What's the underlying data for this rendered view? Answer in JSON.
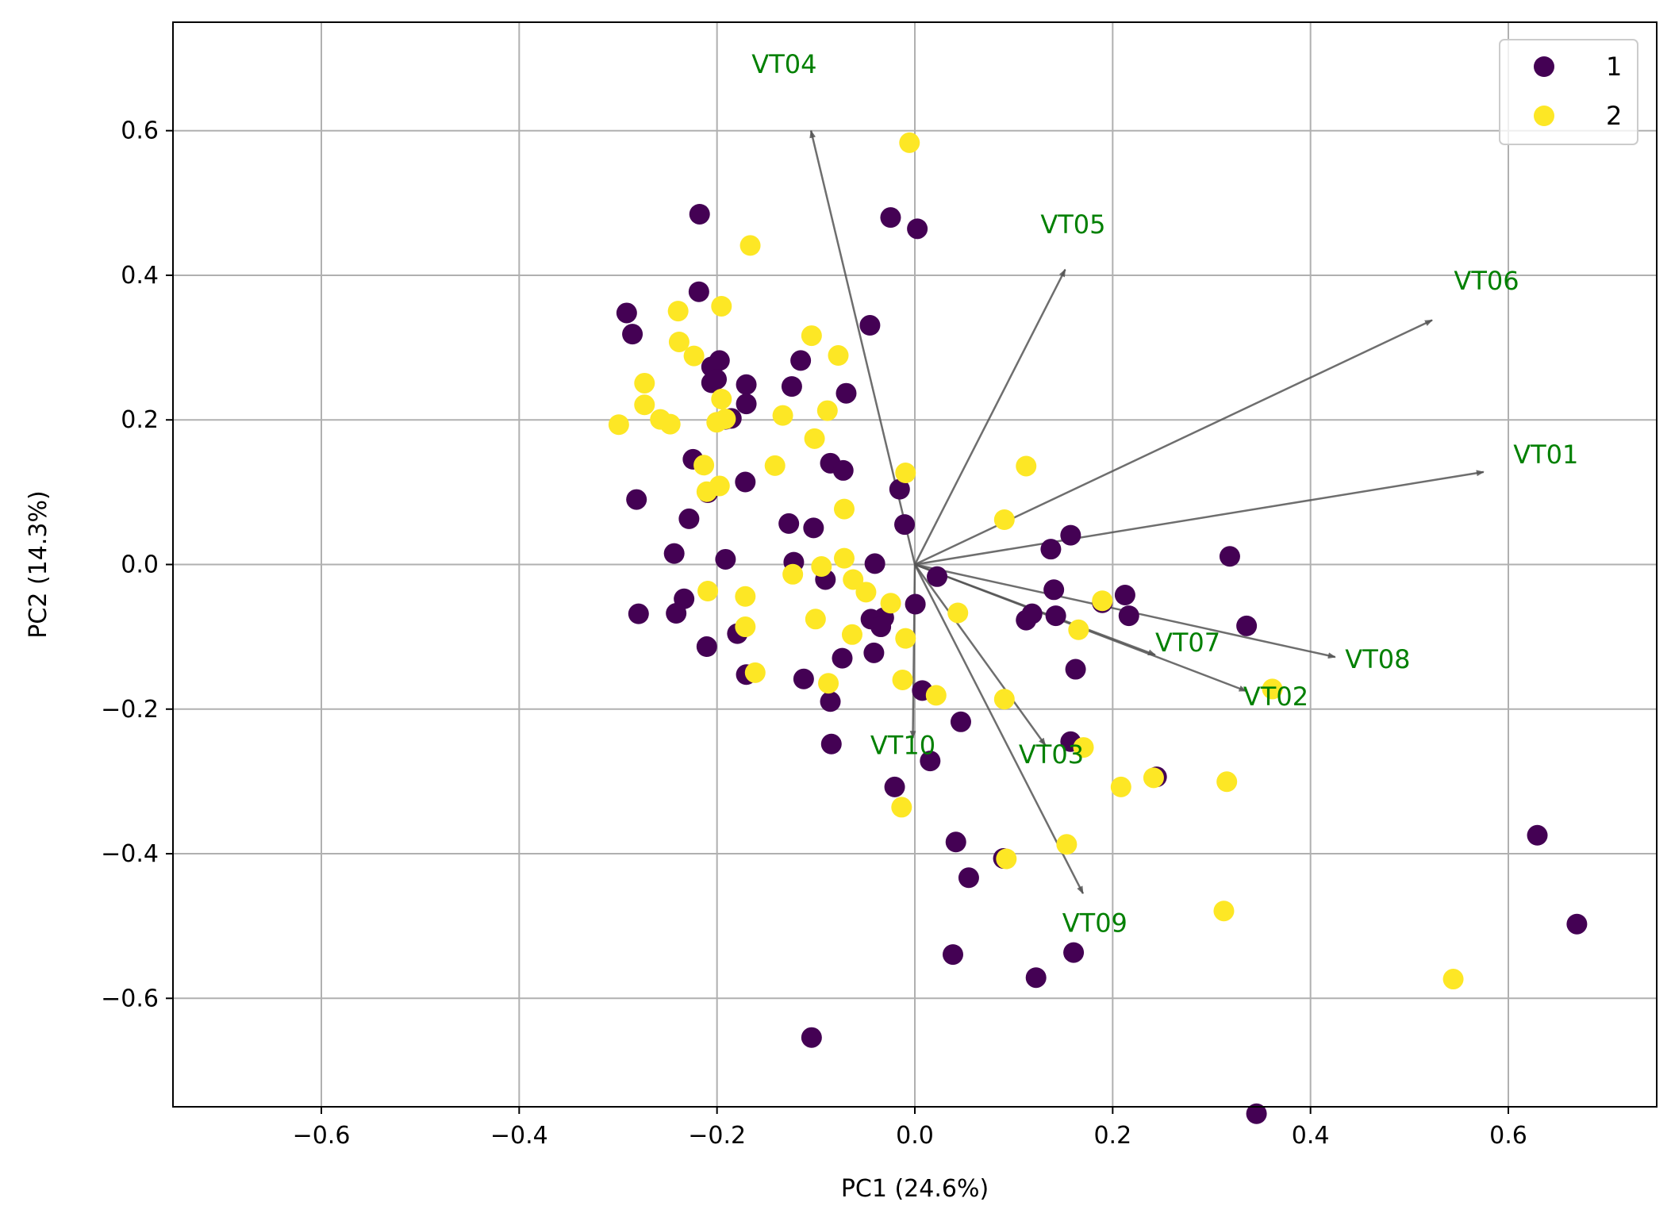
{
  "chart_data": {
    "type": "scatter",
    "title": "",
    "xlabel": "PC1 (24.6%)",
    "ylabel": "PC2 (14.3%)",
    "xlim": [
      -0.75,
      0.75
    ],
    "ylim": [
      -0.75,
      0.75
    ],
    "xticks": [
      -0.6,
      -0.4,
      -0.2,
      0.0,
      0.2,
      0.4,
      0.6
    ],
    "yticks": [
      -0.6,
      -0.4,
      -0.2,
      0.0,
      0.2,
      0.4,
      0.6
    ],
    "xtick_labels": [
      "−0.6",
      "−0.4",
      "−0.2",
      "0.0",
      "0.2",
      "0.4",
      "0.6"
    ],
    "ytick_labels": [
      "−0.6",
      "−0.4",
      "−0.2",
      "0.0",
      "0.2",
      "0.4",
      "0.6"
    ],
    "grid": true,
    "legend_position": "top-right",
    "series": [
      {
        "name": "1",
        "color": "#440154",
        "points": [
          [
            -0.2176,
            0.4845
          ],
          [
            -0.0245,
            0.4799
          ],
          [
            0.0025,
            0.4643
          ],
          [
            -0.2183,
            0.3772
          ],
          [
            -0.2913,
            0.3479
          ],
          [
            -0.2855,
            0.3186
          ],
          [
            -0.0454,
            0.3308
          ],
          [
            -0.1975,
            0.2821
          ],
          [
            -0.2055,
            0.2734
          ],
          [
            -0.1154,
            0.2821
          ],
          [
            -0.2055,
            0.2514
          ],
          [
            -0.1704,
            0.2488
          ],
          [
            -0.1244,
            0.2462
          ],
          [
            -0.0694,
            0.2368
          ],
          [
            -0.2005,
            0.2561
          ],
          [
            -0.1704,
            0.2221
          ],
          [
            -0.1855,
            0.2021
          ],
          [
            -0.1914,
            0.2008
          ],
          [
            -0.2243,
            0.1455
          ],
          [
            -0.0854,
            0.1401
          ],
          [
            -0.0724,
            0.1301
          ],
          [
            -0.1714,
            0.1141
          ],
          [
            -0.2093,
            0.0993
          ],
          [
            -0.2814,
            0.0899
          ],
          [
            -0.0154,
            0.1041
          ],
          [
            -0.2283,
            0.0632
          ],
          [
            -0.1274,
            0.0566
          ],
          [
            -0.1024,
            0.0506
          ],
          [
            -0.0104,
            0.0553
          ],
          [
            -0.2433,
            0.0152
          ],
          [
            -0.1914,
            0.0072
          ],
          [
            -0.1224,
            0.0032
          ],
          [
            -0.0404,
            0.0012
          ],
          [
            0.0225,
            -0.0168
          ],
          [
            0.1375,
            0.0212
          ],
          [
            0.1575,
            0.0405
          ],
          [
            0.3184,
            0.0112
          ],
          [
            -0.0904,
            -0.0208
          ],
          [
            -0.2333,
            -0.0475
          ],
          [
            -0.2793,
            -0.0682
          ],
          [
            -0.2413,
            -0.0675
          ],
          [
            -0.0444,
            -0.0756
          ],
          [
            -0.0314,
            -0.0736
          ],
          [
            -0.0344,
            -0.0862
          ],
          [
            0.0005,
            -0.0549
          ],
          [
            0.1125,
            -0.0769
          ],
          [
            0.1185,
            -0.0682
          ],
          [
            0.1405,
            -0.0349
          ],
          [
            0.1425,
            -0.0709
          ],
          [
            0.1895,
            -0.0529
          ],
          [
            0.2125,
            -0.0422
          ],
          [
            0.2164,
            -0.0709
          ],
          [
            0.3354,
            -0.0849
          ],
          [
            -0.2103,
            -0.1136
          ],
          [
            -0.1794,
            -0.0956
          ],
          [
            -0.0414,
            -0.1222
          ],
          [
            -0.0734,
            -0.1296
          ],
          [
            -0.1704,
            -0.1523
          ],
          [
            -0.1124,
            -0.1583
          ],
          [
            0.0075,
            -0.1743
          ],
          [
            0.1625,
            -0.1449
          ],
          [
            -0.0854,
            -0.1896
          ],
          [
            0.0465,
            -0.2176
          ],
          [
            -0.0844,
            -0.2483
          ],
          [
            0.0155,
            -0.2717
          ],
          [
            0.1575,
            -0.245
          ],
          [
            0.2444,
            -0.2937
          ],
          [
            -0.0204,
            -0.3077
          ],
          [
            0.0415,
            -0.3838
          ],
          [
            0.0895,
            -0.4065
          ],
          [
            0.0545,
            -0.4332
          ],
          [
            0.6293,
            -0.3745
          ],
          [
            0.6693,
            -0.4973
          ],
          [
            0.1605,
            -0.5367
          ],
          [
            0.0385,
            -0.5394
          ],
          [
            0.1225,
            -0.5714
          ],
          [
            -0.1044,
            -0.6542
          ],
          [
            0.3454,
            -0.7596
          ]
        ]
      },
      {
        "name": "2",
        "color": "#fde725",
        "points": [
          [
            -0.0054,
            0.5833
          ],
          [
            -0.1664,
            0.4412
          ],
          [
            -0.2393,
            0.3505
          ],
          [
            -0.1955,
            0.3572
          ],
          [
            -0.2383,
            0.3078
          ],
          [
            -0.2233,
            0.2885
          ],
          [
            -0.1044,
            0.3165
          ],
          [
            -0.0774,
            0.2891
          ],
          [
            -0.2733,
            0.2508
          ],
          [
            -0.2733,
            0.2208
          ],
          [
            -0.1955,
            0.2288
          ],
          [
            -0.2573,
            0.2007
          ],
          [
            -0.1914,
            0.2014
          ],
          [
            -0.2003,
            0.1967
          ],
          [
            -0.1335,
            0.2061
          ],
          [
            -0.0884,
            0.2128
          ],
          [
            -0.2473,
            0.1941
          ],
          [
            -0.2993,
            0.1934
          ],
          [
            -0.1014,
            0.1741
          ],
          [
            -0.2133,
            0.1374
          ],
          [
            -0.1414,
            0.1367
          ],
          [
            -0.0094,
            0.1267
          ],
          [
            0.1125,
            0.1361
          ],
          [
            -0.1975,
            0.1087
          ],
          [
            -0.2103,
            0.1007
          ],
          [
            0.0905,
            0.062
          ],
          [
            -0.0714,
            0.0767
          ],
          [
            -0.0714,
            0.0086
          ],
          [
            -0.0944,
            -0.0028
          ],
          [
            -0.1234,
            -0.0135
          ],
          [
            -0.0624,
            -0.0208
          ],
          [
            -0.0494,
            -0.0382
          ],
          [
            -0.0244,
            -0.0535
          ],
          [
            -0.2093,
            -0.0368
          ],
          [
            -0.1714,
            -0.0442
          ],
          [
            -0.1714,
            -0.0862
          ],
          [
            -0.1004,
            -0.0755
          ],
          [
            -0.0634,
            -0.0969
          ],
          [
            -0.0094,
            -0.1022
          ],
          [
            0.0435,
            -0.0669
          ],
          [
            0.1655,
            -0.0903
          ],
          [
            0.1895,
            -0.0502
          ],
          [
            -0.1614,
            -0.1496
          ],
          [
            -0.0874,
            -0.1643
          ],
          [
            -0.0124,
            -0.1596
          ],
          [
            0.0215,
            -0.1809
          ],
          [
            0.0905,
            -0.1863
          ],
          [
            0.3614,
            -0.1722
          ],
          [
            0.1705,
            -0.253
          ],
          [
            0.2414,
            -0.295
          ],
          [
            0.2084,
            -0.3077
          ],
          [
            0.3154,
            -0.3004
          ],
          [
            -0.0134,
            -0.3357
          ],
          [
            0.1535,
            -0.3871
          ],
          [
            0.0925,
            -0.4071
          ],
          [
            0.3124,
            -0.4792
          ],
          [
            0.5443,
            -0.5734
          ]
        ]
      }
    ],
    "loadings": [
      {
        "name": "VT01",
        "x": 0.575,
        "y": 0.128,
        "label_x": 0.605,
        "label_y": 0.14
      },
      {
        "name": "VT02",
        "x": 0.335,
        "y": -0.175,
        "label_x": 0.332,
        "label_y": -0.195
      },
      {
        "name": "VT03",
        "x": 0.132,
        "y": -0.25,
        "label_x": 0.105,
        "label_y": -0.275
      },
      {
        "name": "VT04",
        "x": -0.105,
        "y": 0.6,
        "label_x": -0.165,
        "label_y": 0.68
      },
      {
        "name": "VT05",
        "x": 0.152,
        "y": 0.408,
        "label_x": 0.127,
        "label_y": 0.458
      },
      {
        "name": "VT06",
        "x": 0.523,
        "y": 0.338,
        "label_x": 0.545,
        "label_y": 0.38
      },
      {
        "name": "VT07",
        "x": 0.243,
        "y": -0.125,
        "label_x": 0.243,
        "label_y": -0.12
      },
      {
        "name": "VT08",
        "x": 0.425,
        "y": -0.128,
        "label_x": 0.435,
        "label_y": -0.143
      },
      {
        "name": "VT09",
        "x": 0.17,
        "y": -0.455,
        "label_x": 0.149,
        "label_y": -0.508
      },
      {
        "name": "VT10",
        "x": -0.002,
        "y": -0.24,
        "label_x": -0.045,
        "label_y": -0.262
      }
    ],
    "loading_color": "#008000",
    "arrow_color": "#555555"
  }
}
